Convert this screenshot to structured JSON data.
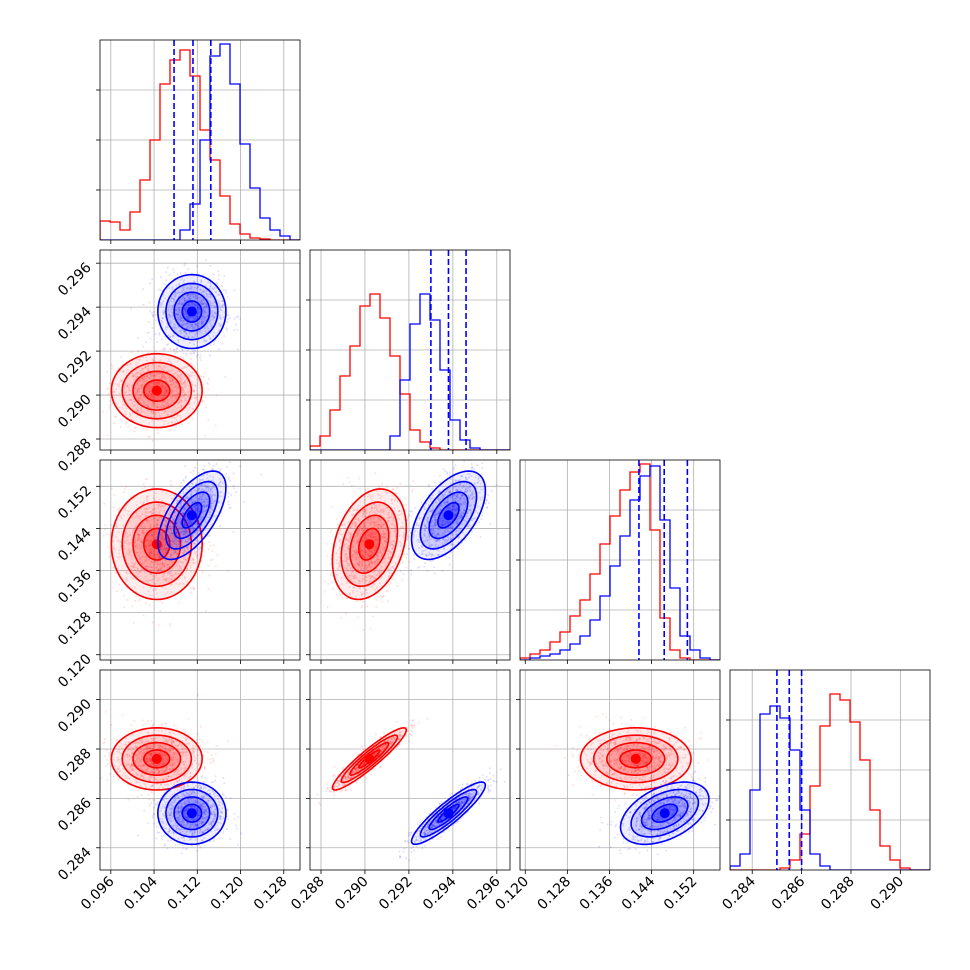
{
  "chart_data": {
    "type": "corner",
    "params": [
      {
        "ticks": [
          "0.096",
          "0.104",
          "0.112",
          "0.120",
          "0.128"
        ],
        "tick_values": [
          0.096,
          0.104,
          0.112,
          0.12,
          0.128
        ],
        "range": [
          0.094,
          0.131
        ]
      },
      {
        "ticks": [
          "0.288",
          "0.290",
          "0.292",
          "0.294",
          "0.296"
        ],
        "tick_values": [
          0.288,
          0.29,
          0.292,
          0.294,
          0.296
        ],
        "range": [
          0.2875,
          0.2966
        ]
      },
      {
        "ticks": [
          "0.120",
          "0.128",
          "0.136",
          "0.144",
          "0.152"
        ],
        "tick_values": [
          0.12,
          0.128,
          0.136,
          0.144,
          0.152
        ],
        "range": [
          0.119,
          0.157
        ]
      },
      {
        "ticks": [
          "0.284",
          "0.286",
          "0.288",
          "0.290"
        ],
        "tick_values": [
          0.284,
          0.286,
          0.288,
          0.29
        ],
        "range": [
          0.2831,
          0.2912
        ]
      }
    ],
    "series": [
      {
        "color": "#ff0000",
        "means": [
          0.1045,
          0.2902,
          0.141,
          0.2876
        ],
        "sigmas": [
          0.004,
          0.0008,
          0.005,
          0.0006
        ],
        "corr": [
          [
            1,
            0,
            0,
            0
          ],
          [
            0,
            1,
            0.3,
            0.93
          ],
          [
            0,
            0.3,
            1,
            0
          ],
          [
            0,
            0.93,
            0,
            1
          ]
        ],
        "hist": [
          [
            0.095,
            0.09,
            0.05,
            0.14,
            0.3,
            0.5,
            0.78,
            0.9,
            0.95,
            0.82,
            0.55,
            0.4,
            0.22,
            0.08,
            0.03,
            0.01,
            0.005,
            0,
            0,
            0
          ],
          [
            0.02,
            0.07,
            0.2,
            0.37,
            0.52,
            0.72,
            0.78,
            0.66,
            0.47,
            0.28,
            0.1,
            0.04,
            0.01,
            0,
            0,
            0,
            0,
            0,
            0,
            0
          ],
          [
            0.01,
            0.03,
            0.05,
            0.09,
            0.14,
            0.22,
            0.3,
            0.43,
            0.58,
            0.72,
            0.85,
            0.94,
            0.98,
            0.65,
            0.21,
            0.05,
            0.01,
            0,
            0,
            0
          ],
          [
            0,
            0,
            0,
            0,
            0,
            0.01,
            0.05,
            0.18,
            0.42,
            0.72,
            0.88,
            0.85,
            0.74,
            0.55,
            0.3,
            0.12,
            0.05,
            0.01,
            0,
            0
          ]
        ]
      },
      {
        "color": "#0000ff",
        "means": [
          0.111,
          0.2938,
          0.1465,
          0.2854
        ],
        "sigmas": [
          0.003,
          0.0008,
          0.004,
          0.0006
        ],
        "corr": [
          [
            1,
            0,
            0.62,
            0
          ],
          [
            0,
            1,
            0.55,
            0.9
          ],
          [
            0.62,
            0.55,
            1,
            0.45
          ],
          [
            0,
            0.9,
            0.45,
            1
          ]
        ],
        "quantiles": [
          [
            0.1077,
            0.1112,
            0.1145
          ],
          [
            0.293,
            0.2938,
            0.2946
          ],
          [
            0.1416,
            0.1464,
            0.1508
          ],
          [
            0.285,
            0.2855,
            0.286
          ]
        ],
        "hist": [
          [
            0,
            0,
            0,
            0,
            0,
            0,
            0,
            0,
            0.05,
            0.18,
            0.5,
            0.92,
            0.98,
            0.78,
            0.48,
            0.26,
            0.11,
            0.05,
            0.02,
            0
          ],
          [
            0,
            0,
            0,
            0,
            0,
            0,
            0,
            0,
            0.07,
            0.35,
            0.63,
            0.78,
            0.65,
            0.4,
            0.15,
            0.05,
            0.01,
            0,
            0,
            0
          ],
          [
            0,
            0.01,
            0.02,
            0.03,
            0.05,
            0.08,
            0.12,
            0.2,
            0.32,
            0.47,
            0.62,
            0.8,
            0.92,
            0.97,
            0.7,
            0.36,
            0.12,
            0.05,
            0.01,
            0
          ],
          [
            0.02,
            0.08,
            0.4,
            0.78,
            0.82,
            0.76,
            0.6,
            0.3,
            0.08,
            0.02,
            0,
            0,
            0,
            0,
            0,
            0,
            0,
            0,
            0,
            0
          ]
        ]
      }
    ]
  }
}
